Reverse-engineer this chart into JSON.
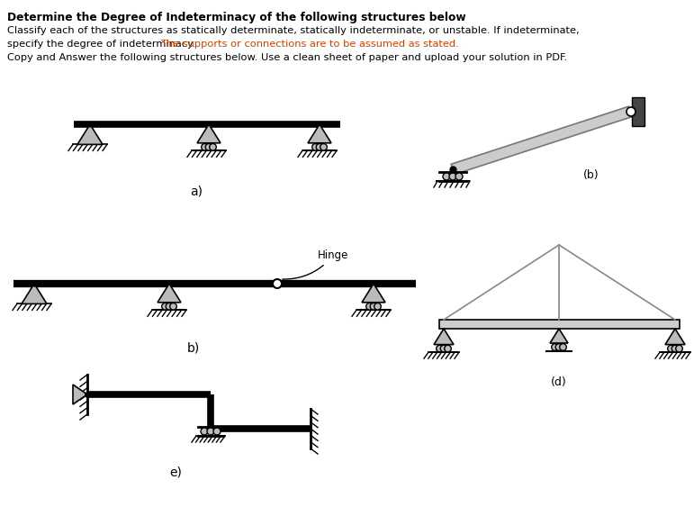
{
  "title": "Determine the Degree of Indeterminacy of the following structures below",
  "line1": "Classify each of the structures as statically determinate, statically indeterminate, or unstable. If indeterminate,",
  "line2a": "specify the degree of indeterminacy. ",
  "line2b": "The supports or connections are to be assumed as stated.",
  "line3": "Copy and Answer the following structures below. Use a clean sheet of paper and upload your solution in PDF.",
  "label_a": "a)",
  "label_b": "b)",
  "label_b2": "(b)",
  "label_d": "(d)",
  "label_e": "e)",
  "hinge_label": "Hinge",
  "bg_color": "#ffffff",
  "text_color": "#000000",
  "orange_color": "#cc4400",
  "gray_color": "#bbbbbb",
  "dark_gray": "#555555",
  "strut_gray": "#cccccc"
}
